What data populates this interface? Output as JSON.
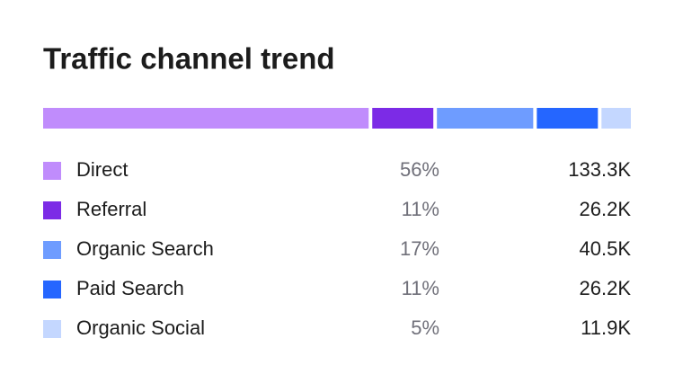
{
  "chart_data": {
    "type": "stacked-bar",
    "title": "Traffic channel trend",
    "series": [
      {
        "name": "Direct",
        "color": "#c08cfc",
        "values": [
          56
        ],
        "value_labels": [
          "56%"
        ],
        "counts": [
          133300
        ],
        "count_labels": [
          "133.3K"
        ]
      },
      {
        "name": "Referral",
        "color": "#7c2be6",
        "values": [
          11
        ],
        "value_labels": [
          "11%"
        ],
        "counts": [
          26200
        ],
        "count_labels": [
          "26.2K"
        ]
      },
      {
        "name": "Organic Search",
        "color": "#6e9cff",
        "values": [
          17
        ],
        "value_labels": [
          "17%"
        ],
        "counts": [
          40500
        ],
        "count_labels": [
          "40.5K"
        ]
      },
      {
        "name": "Paid Search",
        "color": "#2566ff",
        "values": [
          11
        ],
        "value_labels": [
          "11%"
        ],
        "counts": [
          26200
        ],
        "count_labels": [
          "26.2K"
        ]
      },
      {
        "name": "Organic Social",
        "color": "#c4d7ff",
        "values": [
          5
        ],
        "value_labels": [
          "5%"
        ],
        "counts": [
          11900
        ],
        "count_labels": [
          "11.9K"
        ]
      }
    ]
  }
}
